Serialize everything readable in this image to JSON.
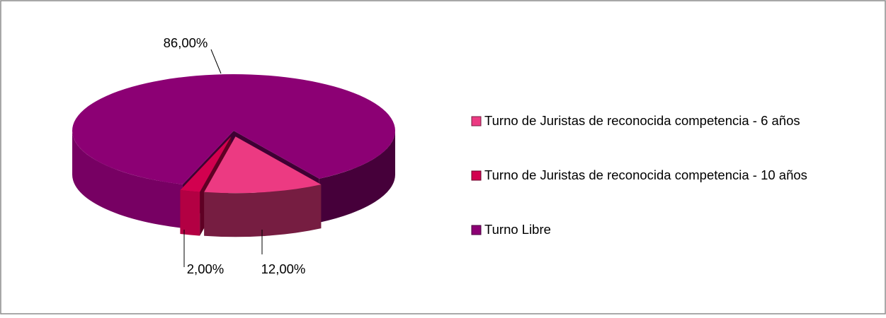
{
  "chart_data": {
    "type": "pie",
    "categories": [
      "Turno de Juristas de reconocida competencia - 6 años",
      "Turno de Juristas de reconocida competencia - 10 años",
      "Turno Libre"
    ],
    "values": [
      12,
      2,
      86
    ],
    "value_labels": [
      "12,00%",
      "2,00%",
      "86,00%"
    ],
    "colors": [
      "#ec3a82",
      "#d2004f",
      "#8c0074"
    ],
    "legend": "right"
  }
}
